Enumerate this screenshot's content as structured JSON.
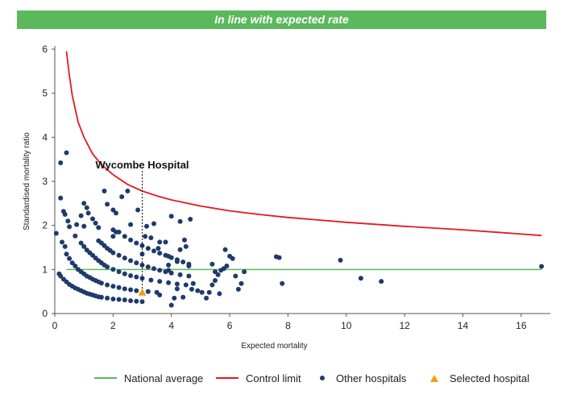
{
  "header": {
    "title": "In line with expected rate"
  },
  "colors": {
    "banner": "#5cb85c",
    "national": "#5cb85c",
    "control": "#e31a1c",
    "other": "#1f3a6b",
    "selected": "#f39c12",
    "axis": "#555555"
  },
  "legend": {
    "national": "National average",
    "control": "Control limit",
    "other": "Other hospitals",
    "selected": "Selected hospital"
  },
  "chart_data": {
    "type": "scatter",
    "xlabel": "Expected mortality",
    "ylabel": "Standardised mortality ratio",
    "xlim": [
      0,
      17
    ],
    "ylim": [
      0,
      6
    ],
    "x_ticks": [
      0,
      2,
      4,
      6,
      8,
      10,
      12,
      14,
      16
    ],
    "y_ticks": [
      0,
      1,
      2,
      3,
      4,
      5,
      6
    ],
    "grid": false,
    "legend_position": "bottom",
    "annotation": {
      "label": "Wycombe Hospital",
      "x": 3.0
    },
    "national_average": 1.0,
    "national_average_range": [
      0.4,
      16.7
    ],
    "control_limit": {
      "x": [
        0.4,
        0.5,
        0.6,
        0.8,
        1.0,
        1.3,
        1.6,
        2.0,
        2.5,
        3.0,
        3.5,
        4.0,
        5.0,
        6.0,
        7.0,
        8.0,
        10.0,
        12.0,
        14.0,
        16.7
      ],
      "y": [
        5.95,
        5.4,
        4.95,
        4.35,
        4.0,
        3.62,
        3.38,
        3.15,
        2.93,
        2.78,
        2.67,
        2.58,
        2.44,
        2.33,
        2.25,
        2.18,
        2.07,
        1.98,
        1.9,
        1.77
      ]
    },
    "series": [
      {
        "name": "Other hospitals",
        "points": [
          [
            0.2,
            3.42
          ],
          [
            0.4,
            3.65
          ],
          [
            0.2,
            2.62
          ],
          [
            0.3,
            2.32
          ],
          [
            0.35,
            2.25
          ],
          [
            0.45,
            2.1
          ],
          [
            0.5,
            1.97
          ],
          [
            0.75,
            2.02
          ],
          [
            0.7,
            1.76
          ],
          [
            0.05,
            1.82
          ],
          [
            0.25,
            1.62
          ],
          [
            0.35,
            1.52
          ],
          [
            0.9,
            2.22
          ],
          [
            1.0,
            2.5
          ],
          [
            1.1,
            2.4
          ],
          [
            1.15,
            2.28
          ],
          [
            1.3,
            2.15
          ],
          [
            1.4,
            2.05
          ],
          [
            1.0,
            1.98
          ],
          [
            1.7,
            2.78
          ],
          [
            1.8,
            2.48
          ],
          [
            2.0,
            2.35
          ],
          [
            2.1,
            2.28
          ],
          [
            2.3,
            2.65
          ],
          [
            2.5,
            2.78
          ],
          [
            2.85,
            2.35
          ],
          [
            2.6,
            2.02
          ],
          [
            3.15,
            1.98
          ],
          [
            3.4,
            2.04
          ],
          [
            3.55,
            1.48
          ],
          [
            3.8,
            1.62
          ],
          [
            4.0,
            2.21
          ],
          [
            4.3,
            2.09
          ],
          [
            4.65,
            2.14
          ],
          [
            4.45,
            1.67
          ],
          [
            3.0,
            1.35
          ],
          [
            1.5,
            1.95
          ],
          [
            2.0,
            1.75
          ],
          [
            0.15,
            0.9
          ],
          [
            0.2,
            0.85
          ],
          [
            0.3,
            0.78
          ],
          [
            0.4,
            0.72
          ],
          [
            0.5,
            0.66
          ],
          [
            0.6,
            0.62
          ],
          [
            0.7,
            0.58
          ],
          [
            0.8,
            0.55
          ],
          [
            0.9,
            0.52
          ],
          [
            1.0,
            0.49
          ],
          [
            1.1,
            0.46
          ],
          [
            1.2,
            0.44
          ],
          [
            1.3,
            0.42
          ],
          [
            1.4,
            0.4
          ],
          [
            1.5,
            0.38
          ],
          [
            1.6,
            0.37
          ],
          [
            1.8,
            0.35
          ],
          [
            2.0,
            0.33
          ],
          [
            2.2,
            0.32
          ],
          [
            2.4,
            0.31
          ],
          [
            2.6,
            0.29
          ],
          [
            2.8,
            0.28
          ],
          [
            3.0,
            0.27
          ],
          [
            0.4,
            1.35
          ],
          [
            0.5,
            1.25
          ],
          [
            0.6,
            1.15
          ],
          [
            0.7,
            1.08
          ],
          [
            0.8,
            1.0
          ],
          [
            0.9,
            0.95
          ],
          [
            1.0,
            0.9
          ],
          [
            1.1,
            0.85
          ],
          [
            1.2,
            0.82
          ],
          [
            1.3,
            0.78
          ],
          [
            1.4,
            0.75
          ],
          [
            1.5,
            0.72
          ],
          [
            1.6,
            0.69
          ],
          [
            1.8,
            0.65
          ],
          [
            2.0,
            0.62
          ],
          [
            2.2,
            0.59
          ],
          [
            2.4,
            0.56
          ],
          [
            2.6,
            0.54
          ],
          [
            2.8,
            0.52
          ],
          [
            3.2,
            0.5
          ],
          [
            3.5,
            0.48
          ],
          [
            0.9,
            1.6
          ],
          [
            1.0,
            1.52
          ],
          [
            1.1,
            1.44
          ],
          [
            1.2,
            1.38
          ],
          [
            1.3,
            1.32
          ],
          [
            1.4,
            1.26
          ],
          [
            1.5,
            1.2
          ],
          [
            1.6,
            1.15
          ],
          [
            1.7,
            1.1
          ],
          [
            1.8,
            1.06
          ],
          [
            2.0,
            1.0
          ],
          [
            2.2,
            0.95
          ],
          [
            2.4,
            0.9
          ],
          [
            2.6,
            0.86
          ],
          [
            2.8,
            0.83
          ],
          [
            3.0,
            0.8
          ],
          [
            3.3,
            0.76
          ],
          [
            3.6,
            0.73
          ],
          [
            3.9,
            0.7
          ],
          [
            4.2,
            0.67
          ],
          [
            4.5,
            0.65
          ],
          [
            1.5,
            1.65
          ],
          [
            1.6,
            1.6
          ],
          [
            1.7,
            1.54
          ],
          [
            1.8,
            1.48
          ],
          [
            1.9,
            1.43
          ],
          [
            2.0,
            1.38
          ],
          [
            2.2,
            1.32
          ],
          [
            2.4,
            1.26
          ],
          [
            2.6,
            1.2
          ],
          [
            2.8,
            1.15
          ],
          [
            3.0,
            1.1
          ],
          [
            3.2,
            1.06
          ],
          [
            3.4,
            1.02
          ],
          [
            3.6,
            0.98
          ],
          [
            3.8,
            0.95
          ],
          [
            4.0,
            0.92
          ],
          [
            4.3,
            0.88
          ],
          [
            4.6,
            0.85
          ],
          [
            2.2,
            1.85
          ],
          [
            2.4,
            1.75
          ],
          [
            2.6,
            1.67
          ],
          [
            2.8,
            1.6
          ],
          [
            3.0,
            1.54
          ],
          [
            3.2,
            1.48
          ],
          [
            3.4,
            1.42
          ],
          [
            3.6,
            1.37
          ],
          [
            3.8,
            1.32
          ],
          [
            4.0,
            1.27
          ],
          [
            4.2,
            1.22
          ],
          [
            4.4,
            1.17
          ],
          [
            4.6,
            1.12
          ],
          [
            2.0,
            1.9
          ],
          [
            2.1,
            1.85
          ],
          [
            3.1,
            1.75
          ],
          [
            3.3,
            1.72
          ],
          [
            3.6,
            1.62
          ],
          [
            3.9,
            1.3
          ],
          [
            4.3,
            1.45
          ],
          [
            4.5,
            1.52
          ],
          [
            4.2,
            1.18
          ],
          [
            4.6,
            1.08
          ],
          [
            3.9,
            1.1
          ],
          [
            3.9,
            0.98
          ],
          [
            3.6,
            0.42
          ],
          [
            4.1,
            0.35
          ],
          [
            4.4,
            0.37
          ],
          [
            4.2,
            0.56
          ],
          [
            4.0,
            0.19
          ],
          [
            4.7,
            0.55
          ],
          [
            4.75,
            0.68
          ],
          [
            4.9,
            0.52
          ],
          [
            5.05,
            0.48
          ],
          [
            5.2,
            0.35
          ],
          [
            5.3,
            0.48
          ],
          [
            5.4,
            0.65
          ],
          [
            5.5,
            0.75
          ],
          [
            5.6,
            0.88
          ],
          [
            5.7,
            0.98
          ],
          [
            5.8,
            1.02
          ],
          [
            5.9,
            1.08
          ],
          [
            6.0,
            1.3
          ],
          [
            6.1,
            1.25
          ],
          [
            6.2,
            0.85
          ],
          [
            6.3,
            0.55
          ],
          [
            6.4,
            0.68
          ],
          [
            6.5,
            0.95
          ],
          [
            5.85,
            1.45
          ],
          [
            5.65,
            0.45
          ],
          [
            5.4,
            1.12
          ],
          [
            5.5,
            0.95
          ],
          [
            7.6,
            1.29
          ],
          [
            7.7,
            1.27
          ],
          [
            7.8,
            0.68
          ],
          [
            9.8,
            1.21
          ],
          [
            10.5,
            0.8
          ],
          [
            11.2,
            0.73
          ],
          [
            16.7,
            1.07
          ]
        ]
      },
      {
        "name": "Selected hospital",
        "points": [
          [
            3.0,
            0.48
          ]
        ]
      }
    ]
  }
}
